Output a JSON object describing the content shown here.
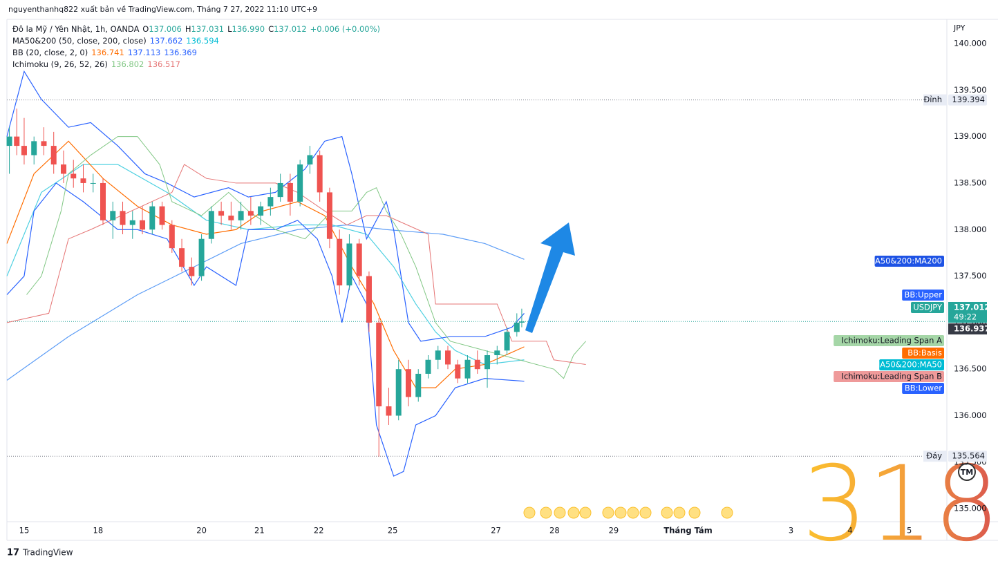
{
  "header": {
    "publisher": "nguyenthanhq822 xuất bản về TradingView.com, Tháng 7 27, 2022 11:10 UTC+9"
  },
  "legend": [
    [
      {
        "text": "Đô la Mỹ / Yên Nhật, 1h, OANDA",
        "color": "#131722"
      },
      {
        "text": "O",
        "color": "#131722"
      },
      {
        "text": "137.006",
        "color": "#26a69a"
      },
      {
        "text": "H",
        "color": "#131722"
      },
      {
        "text": "137.031",
        "color": "#26a69a"
      },
      {
        "text": "L",
        "color": "#131722"
      },
      {
        "text": "136.990",
        "color": "#26a69a"
      },
      {
        "text": "C",
        "color": "#131722"
      },
      {
        "text": "137.012",
        "color": "#26a69a"
      },
      {
        "text": "+0.006 (+0.00%)",
        "color": "#26a69a"
      }
    ],
    [
      {
        "text": "MA50&200 (50, close, 200, close)",
        "color": "#131722"
      },
      {
        "text": "137.662",
        "color": "#2962ff"
      },
      {
        "text": "136.594",
        "color": "#00bcd4"
      }
    ],
    [
      {
        "text": "BB (20, close, 2, 0)",
        "color": "#131722"
      },
      {
        "text": "136.741",
        "color": "#ff6d00"
      },
      {
        "text": "137.113",
        "color": "#2962ff"
      },
      {
        "text": "136.369",
        "color": "#2962ff"
      }
    ],
    [
      {
        "text": "Ichimoku (9, 26, 52, 26)",
        "color": "#131722"
      },
      {
        "text": "136.802",
        "color": "#81c784"
      },
      {
        "text": "136.517",
        "color": "#e57373"
      }
    ]
  ],
  "chart_data": {
    "type": "candlestick",
    "currency": "JPY",
    "xlim": [
      0,
      381
    ],
    "xticks": [
      {
        "value": 7,
        "label": "15"
      },
      {
        "value": 37,
        "label": "18"
      },
      {
        "value": 79,
        "label": "20"
      },
      {
        "value": 102.5,
        "label": "21"
      },
      {
        "value": 126.6,
        "label": "22"
      },
      {
        "value": 156.6,
        "label": "25"
      },
      {
        "value": 198.5,
        "label": "27"
      },
      {
        "value": 222.3,
        "label": "28"
      },
      {
        "value": 246.3,
        "label": "29"
      },
      {
        "value": 276.5,
        "label": "Tháng Tám"
      },
      {
        "value": 318.3,
        "label": "3"
      },
      {
        "value": 342.3,
        "label": "4"
      },
      {
        "value": 366.3,
        "label": "5"
      }
    ],
    "ylim": [
      134.86,
      140.245
    ],
    "yticks": [
      {
        "value": 135,
        "label": "135.000"
      },
      {
        "value": 135.5,
        "label": "135.500"
      },
      {
        "value": 136,
        "label": "136.000"
      },
      {
        "value": 136.5,
        "label": "136.500"
      },
      {
        "value": 137,
        "label": "137.000"
      },
      {
        "value": 137.5,
        "label": "137.500"
      },
      {
        "value": 138,
        "label": "138.000"
      },
      {
        "value": 138.5,
        "label": "138.500"
      },
      {
        "value": 139,
        "label": "139.000"
      },
      {
        "value": 139.5,
        "label": "139.500"
      },
      {
        "value": 140,
        "label": "140.000"
      }
    ],
    "up_color": "#26a69a",
    "down_color": "#ef5350",
    "x": [
      1,
      4,
      7,
      11,
      15,
      19,
      23,
      27,
      31,
      35,
      39,
      43,
      47,
      51,
      55,
      59,
      63,
      67,
      71,
      75,
      79,
      83,
      87,
      91,
      95,
      99,
      103,
      107,
      111,
      115,
      119,
      123,
      127,
      131,
      135,
      139,
      143,
      147,
      151,
      155,
      159,
      163,
      167,
      171,
      175,
      179,
      183,
      187,
      191,
      195,
      199,
      203,
      207,
      209
    ],
    "open": [
      138.9,
      139.0,
      138.9,
      138.8,
      138.95,
      138.9,
      138.7,
      138.6,
      138.55,
      138.5,
      138.5,
      138.1,
      138.2,
      138.05,
      138.1,
      138.0,
      138.25,
      138.05,
      137.8,
      137.6,
      137.5,
      137.9,
      138.2,
      138.15,
      138.1,
      138.2,
      138.15,
      138.25,
      138.35,
      138.5,
      138.3,
      138.7,
      138.8,
      138.4,
      137.9,
      137.4,
      137.85,
      137.5,
      137.0,
      136.1,
      136.0,
      136.5,
      136.2,
      136.45,
      136.6,
      136.7,
      136.55,
      136.4,
      136.6,
      136.5,
      136.65,
      136.7,
      136.9,
      137.0
    ],
    "high": [
      139.1,
      139.3,
      139.2,
      139.0,
      139.1,
      139.05,
      138.85,
      138.75,
      138.7,
      138.6,
      138.55,
      138.3,
      138.3,
      138.2,
      138.25,
      138.3,
      138.3,
      138.1,
      137.9,
      137.7,
      137.95,
      138.25,
      138.3,
      138.3,
      138.3,
      138.35,
      138.3,
      138.45,
      138.6,
      138.6,
      138.75,
      138.9,
      138.85,
      138.45,
      138.0,
      137.95,
      137.9,
      137.55,
      137.05,
      136.3,
      136.6,
      136.6,
      136.5,
      136.65,
      136.75,
      136.75,
      136.6,
      136.65,
      136.7,
      136.7,
      136.75,
      136.95,
      137.1,
      137.15
    ],
    "low": [
      138.6,
      138.8,
      138.7,
      138.7,
      138.8,
      138.6,
      138.5,
      138.45,
      138.4,
      138.4,
      138.05,
      137.9,
      137.95,
      137.9,
      137.95,
      137.95,
      138.0,
      137.75,
      137.55,
      137.4,
      137.45,
      137.85,
      138.05,
      138.0,
      138.0,
      138.05,
      138.05,
      138.15,
      138.3,
      138.15,
      138.25,
      138.6,
      138.3,
      137.8,
      137.3,
      137.35,
      137.4,
      136.9,
      135.56,
      135.9,
      135.95,
      136.1,
      136.15,
      136.4,
      136.5,
      136.5,
      136.35,
      136.35,
      136.45,
      136.3,
      136.55,
      136.65,
      136.85,
      136.95
    ],
    "close": [
      139.0,
      138.9,
      138.8,
      138.95,
      138.9,
      138.7,
      138.6,
      138.55,
      138.5,
      138.5,
      138.1,
      138.2,
      138.05,
      138.1,
      138.0,
      138.25,
      138.05,
      137.8,
      137.6,
      137.5,
      137.9,
      138.2,
      138.15,
      138.1,
      138.2,
      138.15,
      138.25,
      138.35,
      138.5,
      138.3,
      138.7,
      138.8,
      138.4,
      137.9,
      137.4,
      137.85,
      137.5,
      137.0,
      136.1,
      136.0,
      136.5,
      136.2,
      136.45,
      136.6,
      136.7,
      136.55,
      136.4,
      136.6,
      136.5,
      136.65,
      136.7,
      136.9,
      137.0,
      137.012
    ],
    "series": [
      {
        "color": "#5b9cf6",
        "x": [
          0,
          25,
          53,
          76,
          95,
          118,
          138,
          154,
          177,
          194,
          210
        ],
        "values": [
          136.38,
          136.85,
          137.3,
          137.6,
          137.85,
          138.0,
          138.05,
          138.0,
          137.95,
          137.85,
          137.68
        ]
      },
      {
        "color": "#4dd0e1",
        "x": [
          0,
          14,
          31,
          45,
          65,
          81,
          98,
          118,
          132,
          146,
          157,
          166,
          174,
          182,
          194,
          210
        ],
        "values": [
          137.5,
          138.4,
          138.7,
          138.7,
          138.4,
          138.1,
          138.0,
          138.05,
          138.05,
          137.95,
          137.6,
          137.2,
          136.9,
          136.7,
          136.55,
          136.6
        ]
      },
      {
        "color": "#2962ff",
        "x": [
          0,
          7,
          14,
          25,
          34,
          45,
          56,
          65,
          76,
          90,
          98,
          109,
          121,
          129,
          136,
          140,
          146,
          154,
          157,
          163,
          168,
          180,
          194,
          205,
          210
        ],
        "values": [
          139.0,
          139.7,
          139.4,
          139.1,
          139.15,
          138.9,
          138.6,
          138.5,
          138.35,
          138.45,
          138.35,
          138.4,
          138.65,
          138.95,
          139.0,
          138.6,
          137.9,
          138.3,
          138.0,
          137.0,
          136.8,
          136.85,
          136.85,
          136.95,
          137.1
        ]
      },
      {
        "color": "#ff6d00",
        "x": [
          0,
          11,
          25,
          39,
          53,
          67,
          81,
          93,
          104,
          118,
          129,
          140,
          149,
          157,
          166,
          174,
          182,
          194,
          210
        ],
        "values": [
          137.85,
          138.6,
          138.95,
          138.55,
          138.25,
          138.05,
          137.95,
          138.0,
          138.2,
          138.3,
          138.15,
          137.6,
          137.2,
          136.7,
          136.3,
          136.3,
          136.5,
          136.55,
          136.74
        ]
      },
      {
        "color": "#2962ff",
        "x": [
          0,
          7,
          11,
          20,
          31,
          45,
          53,
          65,
          76,
          81,
          93,
          98,
          109,
          118,
          126,
          132,
          136,
          140,
          146,
          150,
          157,
          161,
          166,
          174,
          182,
          194,
          210
        ],
        "values": [
          137.3,
          137.5,
          138.2,
          138.5,
          138.3,
          138.0,
          138.0,
          137.9,
          137.4,
          137.6,
          137.4,
          138.0,
          138.0,
          138.1,
          137.9,
          137.5,
          137.0,
          137.5,
          137.2,
          135.9,
          135.35,
          135.4,
          135.9,
          136.0,
          136.3,
          136.4,
          136.37
        ]
      },
      {
        "color": "#81c784",
        "x": [
          8,
          14,
          22,
          25,
          34,
          45,
          53,
          62,
          67,
          79,
          90,
          98,
          109,
          121,
          132,
          140,
          146,
          150,
          154,
          160,
          166,
          174,
          180,
          194,
          208,
          222,
          226,
          230,
          235
        ],
        "values": [
          137.3,
          137.5,
          138.2,
          138.6,
          138.8,
          139.0,
          139.0,
          138.7,
          138.3,
          138.15,
          138.4,
          138.2,
          138.0,
          137.9,
          138.2,
          138.2,
          138.4,
          138.45,
          138.2,
          137.95,
          137.6,
          137.0,
          136.8,
          136.7,
          136.6,
          136.5,
          136.4,
          136.65,
          136.8
        ]
      },
      {
        "color": "#e57373",
        "x": [
          0,
          17,
          25,
          34,
          67,
          72,
          81,
          93,
          109,
          118,
          129,
          138,
          146,
          154,
          171,
          174,
          199,
          205,
          219,
          222,
          235
        ],
        "values": [
          137.0,
          137.1,
          137.9,
          138.0,
          138.4,
          138.7,
          138.55,
          138.5,
          138.5,
          138.4,
          138.2,
          138.05,
          138.15,
          138.15,
          137.95,
          137.2,
          137.2,
          136.8,
          136.8,
          136.6,
          136.55
        ]
      }
    ],
    "high_mark": {
      "text": "Đỉnh",
      "value": 139.394,
      "label": "139.394"
    },
    "low_mark": {
      "text": "Đáy",
      "value": 135.564,
      "label": "135.564"
    },
    "last_price": {
      "value": 137.012,
      "label": "137.012",
      "countdown": "49:22",
      "symbol": "USDJPY",
      "color": "#26a69a"
    },
    "prev_price": {
      "value": 136.937,
      "label": "136.937"
    },
    "price_labels": [
      {
        "text": "MA50&200:MA200",
        "color": "#1e53e5"
      },
      {
        "text": "BB:Upper",
        "color": "#2962ff"
      },
      {
        "text": "Ichimoku:Leading Span A",
        "color": "#a5d6a7"
      },
      {
        "text": "BB:Basis",
        "color": "#ff6d00"
      },
      {
        "text": "MA50&200:MA50",
        "color": "#00bcd4"
      },
      {
        "text": "Ichimoku:Leading Span B",
        "color": "#ef9a9a"
      },
      {
        "text": "BB:Lower",
        "color": "#2962ff"
      }
    ]
  },
  "footer": {
    "brand": "TradingView"
  },
  "watermark": {
    "text": "318",
    "tm": "TM"
  }
}
